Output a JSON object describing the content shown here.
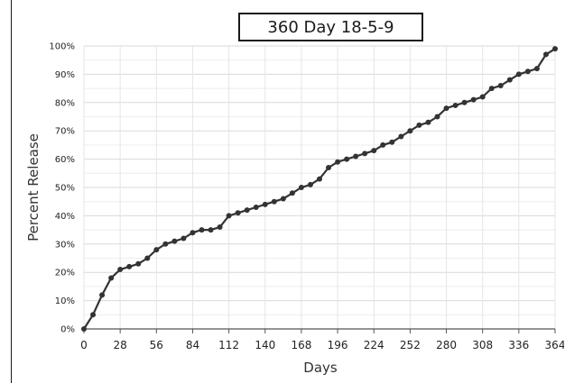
{
  "chart_data": {
    "type": "line",
    "title": "360 Day 18-5-9",
    "xlabel": "Days",
    "ylabel": "Percent Release",
    "xlim": [
      0,
      364
    ],
    "ylim": [
      0,
      100
    ],
    "x_ticks": [
      0,
      28,
      56,
      84,
      112,
      140,
      168,
      196,
      224,
      252,
      280,
      308,
      336,
      364
    ],
    "x_tick_labels": [
      "0",
      "28",
      "56",
      "84",
      "112",
      "140",
      "168",
      "196",
      "224",
      "252",
      "280",
      "308",
      "336",
      "364"
    ],
    "y_ticks": [
      0,
      10,
      20,
      30,
      40,
      50,
      60,
      70,
      80,
      90,
      100
    ],
    "y_tick_labels": [
      "0%",
      "10%",
      "20%",
      "30%",
      "40%",
      "50%",
      "60%",
      "70%",
      "80%",
      "90%",
      "100%"
    ],
    "grid": true,
    "series": [
      {
        "color": "#333333",
        "x": [
          0,
          7,
          14,
          21,
          28,
          35,
          42,
          49,
          56,
          63,
          70,
          77,
          84,
          91,
          98,
          105,
          112,
          119,
          126,
          133,
          140,
          147,
          154,
          161,
          168,
          175,
          182,
          189,
          196,
          203,
          210,
          217,
          224,
          231,
          238,
          245,
          252,
          259,
          266,
          273,
          280,
          287,
          294,
          301,
          308,
          315,
          322,
          329,
          336,
          343,
          350,
          357,
          364
        ],
        "y": [
          0,
          5,
          12,
          18,
          21,
          22,
          23,
          25,
          28,
          30,
          31,
          32,
          34,
          35,
          35,
          36,
          40,
          41,
          42,
          43,
          44,
          45,
          46,
          48,
          50,
          51,
          53,
          57,
          59,
          60,
          61,
          62,
          63,
          65,
          66,
          68,
          70,
          72,
          73,
          75,
          78,
          79,
          80,
          81,
          82,
          85,
          86,
          88,
          90,
          91,
          92,
          97,
          99
        ]
      }
    ]
  }
}
